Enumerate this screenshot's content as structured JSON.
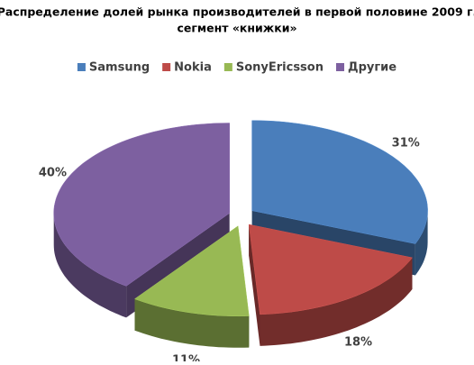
{
  "chart_data": {
    "type": "pie",
    "title": "Распределение долей рынка производителей в первой половине 2009 г.",
    "subtitle": "сегмент «книжки»",
    "categories": [
      "Samsung",
      "Nokia",
      "SonyEricsson",
      "Другие"
    ],
    "values": [
      31,
      18,
      11,
      40
    ],
    "value_labels": [
      "31%",
      "18%",
      "11%",
      "40%"
    ],
    "colors": [
      "#4a7ebb",
      "#be4b48",
      "#98b954",
      "#7d60a0"
    ],
    "legend": "top"
  }
}
